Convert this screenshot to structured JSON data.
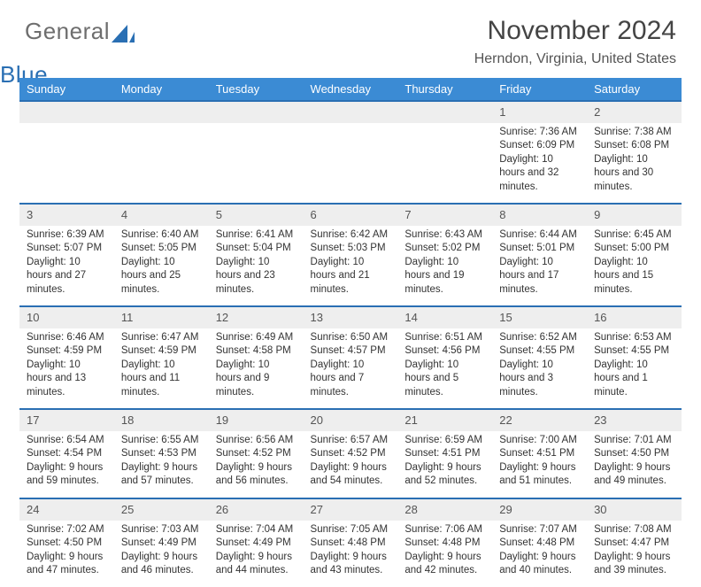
{
  "logo": {
    "word1": "General",
    "word2": "Blue"
  },
  "header": {
    "month": "November 2024",
    "location": "Herndon, Virginia, United States"
  },
  "style": {
    "header_bg": "#3b8bd4",
    "header_text": "#ffffff",
    "daynum_bg": "#eeeeee",
    "week_separator": "#2a6fb3",
    "body_text": "#333333",
    "title_color": "#444444",
    "location_color": "#555555",
    "logo_gray": "#6e6e6e",
    "logo_blue": "#2a6fb3",
    "font_family": "Arial, Helvetica, sans-serif",
    "month_fontsize": 30,
    "location_fontsize": 16,
    "dayhead_fontsize": 13,
    "cell_fontsize": 11.5
  },
  "weekdays": [
    "Sunday",
    "Monday",
    "Tuesday",
    "Wednesday",
    "Thursday",
    "Friday",
    "Saturday"
  ],
  "weeks": [
    [
      null,
      null,
      null,
      null,
      null,
      {
        "n": "1",
        "sunrise": "Sunrise: 7:36 AM",
        "sunset": "Sunset: 6:09 PM",
        "daylight": "Daylight: 10 hours and 32 minutes."
      },
      {
        "n": "2",
        "sunrise": "Sunrise: 7:38 AM",
        "sunset": "Sunset: 6:08 PM",
        "daylight": "Daylight: 10 hours and 30 minutes."
      }
    ],
    [
      {
        "n": "3",
        "sunrise": "Sunrise: 6:39 AM",
        "sunset": "Sunset: 5:07 PM",
        "daylight": "Daylight: 10 hours and 27 minutes."
      },
      {
        "n": "4",
        "sunrise": "Sunrise: 6:40 AM",
        "sunset": "Sunset: 5:05 PM",
        "daylight": "Daylight: 10 hours and 25 minutes."
      },
      {
        "n": "5",
        "sunrise": "Sunrise: 6:41 AM",
        "sunset": "Sunset: 5:04 PM",
        "daylight": "Daylight: 10 hours and 23 minutes."
      },
      {
        "n": "6",
        "sunrise": "Sunrise: 6:42 AM",
        "sunset": "Sunset: 5:03 PM",
        "daylight": "Daylight: 10 hours and 21 minutes."
      },
      {
        "n": "7",
        "sunrise": "Sunrise: 6:43 AM",
        "sunset": "Sunset: 5:02 PM",
        "daylight": "Daylight: 10 hours and 19 minutes."
      },
      {
        "n": "8",
        "sunrise": "Sunrise: 6:44 AM",
        "sunset": "Sunset: 5:01 PM",
        "daylight": "Daylight: 10 hours and 17 minutes."
      },
      {
        "n": "9",
        "sunrise": "Sunrise: 6:45 AM",
        "sunset": "Sunset: 5:00 PM",
        "daylight": "Daylight: 10 hours and 15 minutes."
      }
    ],
    [
      {
        "n": "10",
        "sunrise": "Sunrise: 6:46 AM",
        "sunset": "Sunset: 4:59 PM",
        "daylight": "Daylight: 10 hours and 13 minutes."
      },
      {
        "n": "11",
        "sunrise": "Sunrise: 6:47 AM",
        "sunset": "Sunset: 4:59 PM",
        "daylight": "Daylight: 10 hours and 11 minutes."
      },
      {
        "n": "12",
        "sunrise": "Sunrise: 6:49 AM",
        "sunset": "Sunset: 4:58 PM",
        "daylight": "Daylight: 10 hours and 9 minutes."
      },
      {
        "n": "13",
        "sunrise": "Sunrise: 6:50 AM",
        "sunset": "Sunset: 4:57 PM",
        "daylight": "Daylight: 10 hours and 7 minutes."
      },
      {
        "n": "14",
        "sunrise": "Sunrise: 6:51 AM",
        "sunset": "Sunset: 4:56 PM",
        "daylight": "Daylight: 10 hours and 5 minutes."
      },
      {
        "n": "15",
        "sunrise": "Sunrise: 6:52 AM",
        "sunset": "Sunset: 4:55 PM",
        "daylight": "Daylight: 10 hours and 3 minutes."
      },
      {
        "n": "16",
        "sunrise": "Sunrise: 6:53 AM",
        "sunset": "Sunset: 4:55 PM",
        "daylight": "Daylight: 10 hours and 1 minute."
      }
    ],
    [
      {
        "n": "17",
        "sunrise": "Sunrise: 6:54 AM",
        "sunset": "Sunset: 4:54 PM",
        "daylight": "Daylight: 9 hours and 59 minutes."
      },
      {
        "n": "18",
        "sunrise": "Sunrise: 6:55 AM",
        "sunset": "Sunset: 4:53 PM",
        "daylight": "Daylight: 9 hours and 57 minutes."
      },
      {
        "n": "19",
        "sunrise": "Sunrise: 6:56 AM",
        "sunset": "Sunset: 4:52 PM",
        "daylight": "Daylight: 9 hours and 56 minutes."
      },
      {
        "n": "20",
        "sunrise": "Sunrise: 6:57 AM",
        "sunset": "Sunset: 4:52 PM",
        "daylight": "Daylight: 9 hours and 54 minutes."
      },
      {
        "n": "21",
        "sunrise": "Sunrise: 6:59 AM",
        "sunset": "Sunset: 4:51 PM",
        "daylight": "Daylight: 9 hours and 52 minutes."
      },
      {
        "n": "22",
        "sunrise": "Sunrise: 7:00 AM",
        "sunset": "Sunset: 4:51 PM",
        "daylight": "Daylight: 9 hours and 51 minutes."
      },
      {
        "n": "23",
        "sunrise": "Sunrise: 7:01 AM",
        "sunset": "Sunset: 4:50 PM",
        "daylight": "Daylight: 9 hours and 49 minutes."
      }
    ],
    [
      {
        "n": "24",
        "sunrise": "Sunrise: 7:02 AM",
        "sunset": "Sunset: 4:50 PM",
        "daylight": "Daylight: 9 hours and 47 minutes."
      },
      {
        "n": "25",
        "sunrise": "Sunrise: 7:03 AM",
        "sunset": "Sunset: 4:49 PM",
        "daylight": "Daylight: 9 hours and 46 minutes."
      },
      {
        "n": "26",
        "sunrise": "Sunrise: 7:04 AM",
        "sunset": "Sunset: 4:49 PM",
        "daylight": "Daylight: 9 hours and 44 minutes."
      },
      {
        "n": "27",
        "sunrise": "Sunrise: 7:05 AM",
        "sunset": "Sunset: 4:48 PM",
        "daylight": "Daylight: 9 hours and 43 minutes."
      },
      {
        "n": "28",
        "sunrise": "Sunrise: 7:06 AM",
        "sunset": "Sunset: 4:48 PM",
        "daylight": "Daylight: 9 hours and 42 minutes."
      },
      {
        "n": "29",
        "sunrise": "Sunrise: 7:07 AM",
        "sunset": "Sunset: 4:48 PM",
        "daylight": "Daylight: 9 hours and 40 minutes."
      },
      {
        "n": "30",
        "sunrise": "Sunrise: 7:08 AM",
        "sunset": "Sunset: 4:47 PM",
        "daylight": "Daylight: 9 hours and 39 minutes."
      }
    ]
  ]
}
